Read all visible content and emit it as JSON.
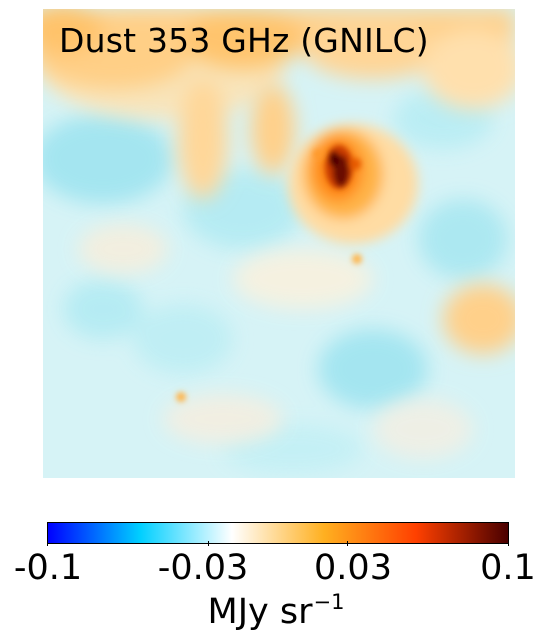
{
  "map": {
    "title": "Dust 353 GHz (GNILC)"
  },
  "colorbar": {
    "tick_labels": [
      "-0.1",
      "-0.03",
      "0.03",
      "0.1"
    ],
    "tick_values": [
      -0.1,
      -0.03,
      0.03,
      0.1
    ],
    "range": [
      -0.1,
      0.1
    ],
    "unit_base": "MJy sr",
    "unit_exponent": "−1",
    "colors": [
      "#0000ff",
      "#00cfff",
      "#ffffff",
      "#ffb020",
      "#ff4000",
      "#4a0000"
    ]
  }
}
